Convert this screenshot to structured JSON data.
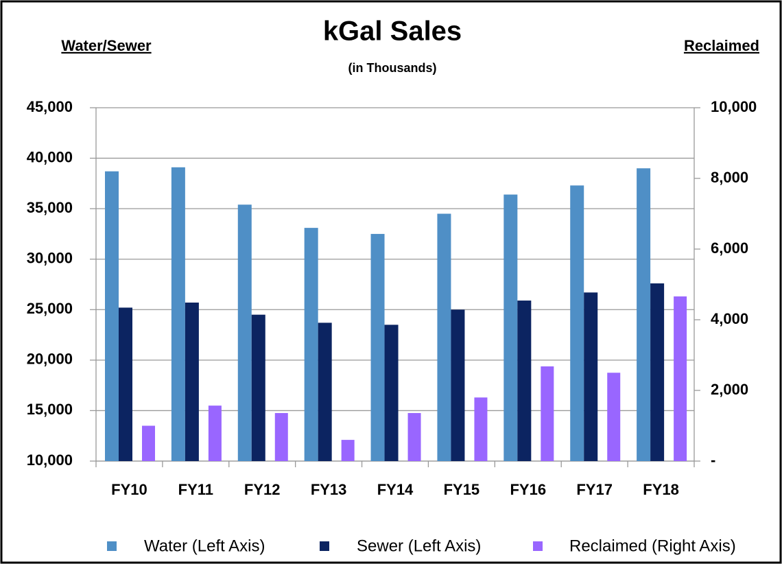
{
  "chart_data": {
    "type": "bar",
    "title": "kGal Sales",
    "subtitle": "(in Thousands)",
    "y_axis_label": "Water/Sewer",
    "y2_axis_label": "Reclaimed",
    "categories": [
      "FY10",
      "FY11",
      "FY12",
      "FY13",
      "FY14",
      "FY15",
      "FY16",
      "FY17",
      "FY18"
    ],
    "series": [
      {
        "name": "Water (Left Axis)",
        "color": "#4f8fc6",
        "values": [
          38700,
          39100,
          35400,
          33100,
          32500,
          34500,
          36400,
          37300,
          39000
        ]
      },
      {
        "name": "Sewer (Left Axis)",
        "color": "#0c2461",
        "values": [
          25200,
          25700,
          24500,
          23700,
          23500,
          25000,
          25900,
          26700,
          27600
        ]
      },
      {
        "name": "Reclaimed (Right Axis)",
        "color": "#9966ff",
        "axis": "y2",
        "values": [
          1000,
          1570,
          1360,
          600,
          1360,
          1800,
          2680,
          2500,
          4660
        ]
      }
    ],
    "ylim": [
      10000,
      45000
    ],
    "yticks": [
      {
        "value": 10000,
        "label": "10,000"
      },
      {
        "value": 15000,
        "label": "15,000"
      },
      {
        "value": 20000,
        "label": "20,000"
      },
      {
        "value": 25000,
        "label": "25,000"
      },
      {
        "value": 30000,
        "label": "30,000"
      },
      {
        "value": 35000,
        "label": "35,000"
      },
      {
        "value": 40000,
        "label": "40,000"
      },
      {
        "value": 45000,
        "label": "45,000"
      }
    ],
    "y2lim": [
      0,
      10000
    ],
    "y2ticks": [
      {
        "value": 0,
        "label": "-"
      },
      {
        "value": 2000,
        "label": "2,000"
      },
      {
        "value": 4000,
        "label": "4,000"
      },
      {
        "value": 6000,
        "label": "6,000"
      },
      {
        "value": 8000,
        "label": "8,000"
      },
      {
        "value": 10000,
        "label": "10,000"
      }
    ],
    "grid": true,
    "legend": "bottom"
  }
}
